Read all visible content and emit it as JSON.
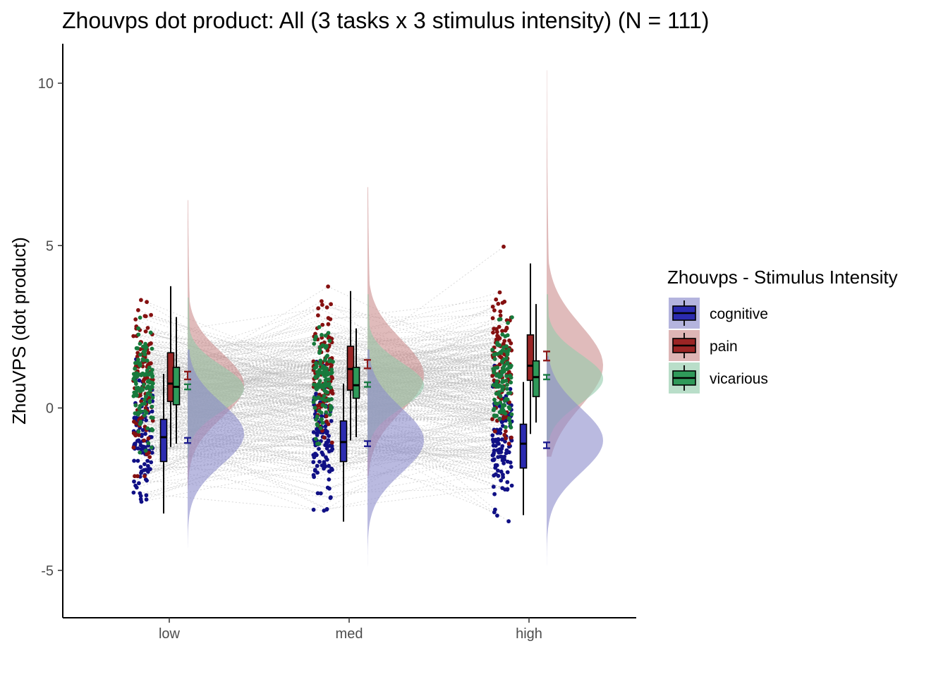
{
  "chart_data": {
    "type": "raincloud",
    "title": "Zhouvps dot product: All (3 tasks x 3 stimulus intensity) (N = 111)",
    "xlabel": "",
    "ylabel": "ZhouVPS  (dot product)",
    "ylim": [
      -6.3,
      11.2
    ],
    "yticks": [
      {
        "value": -5,
        "label": "-5"
      },
      {
        "value": 0,
        "label": "0"
      },
      {
        "value": 5,
        "label": "5"
      },
      {
        "value": 10,
        "label": "10"
      }
    ],
    "categories": [
      "low",
      "med",
      "high"
    ],
    "grid": false,
    "legend": {
      "title": "Zhouvps - Stimulus Intensity",
      "position": "right"
    },
    "series": [
      {
        "name": "cognitive",
        "color": "#1f1f8f",
        "fill": "#2b2bb0",
        "density_fill": "#8c8ccc",
        "point_color": "#101085",
        "stats": [
          {
            "category": "low",
            "q1": -1.65,
            "median": -0.9,
            "q3": -0.35,
            "whisker_low": -3.25,
            "whisker_high": 1.05,
            "mean": -1.0,
            "se": 0.08,
            "density_mean": -0.8,
            "density_sd": 0.95,
            "density_range": [
              -4.3,
              1.8
            ]
          },
          {
            "category": "med",
            "q1": -1.65,
            "median": -1.05,
            "q3": -0.4,
            "whisker_low": -3.5,
            "whisker_high": 0.75,
            "mean": -1.1,
            "se": 0.08,
            "density_mean": -1.0,
            "density_sd": 1.0,
            "density_range": [
              -4.9,
              1.8
            ]
          },
          {
            "category": "high",
            "q1": -1.85,
            "median": -1.1,
            "q3": -0.5,
            "whisker_low": -3.3,
            "whisker_high": 0.8,
            "mean": -1.15,
            "se": 0.09,
            "density_mean": -1.0,
            "density_sd": 1.0,
            "density_range": [
              -5.6,
              1.6
            ]
          }
        ]
      },
      {
        "name": "pain",
        "color": "#8b1a1a",
        "fill": "#9b2525",
        "density_fill": "#cc8e8e",
        "point_color": "#851010",
        "stats": [
          {
            "category": "low",
            "q1": 0.2,
            "median": 0.75,
            "q3": 1.7,
            "whisker_low": -1.2,
            "whisker_high": 3.75,
            "mean": 1.0,
            "se": 0.12,
            "density_mean": 0.7,
            "density_sd": 1.0,
            "density_range": [
              -2.5,
              6.4
            ]
          },
          {
            "category": "med",
            "q1": 0.55,
            "median": 1.2,
            "q3": 1.9,
            "whisker_low": -1.0,
            "whisker_high": 3.6,
            "mean": 1.35,
            "se": 0.13,
            "density_mean": 1.0,
            "density_sd": 1.1,
            "density_range": [
              -2.1,
              6.8
            ]
          },
          {
            "category": "high",
            "q1": 0.85,
            "median": 1.3,
            "q3": 2.25,
            "whisker_low": -0.8,
            "whisker_high": 4.45,
            "mean": 1.6,
            "se": 0.14,
            "density_mean": 1.3,
            "density_sd": 1.25,
            "density_range": [
              -1.5,
              10.4
            ]
          }
        ]
      },
      {
        "name": "vicarious",
        "color": "#1b7a45",
        "fill": "#2f9a5a",
        "density_fill": "#94ccac",
        "point_color": "#177a3c",
        "stats": [
          {
            "category": "low",
            "q1": 0.1,
            "median": 0.65,
            "q3": 1.25,
            "whisker_low": -1.1,
            "whisker_high": 2.8,
            "mean": 0.65,
            "se": 0.08,
            "density_mean": 0.6,
            "density_sd": 0.7,
            "density_range": [
              -1.8,
              3.4
            ]
          },
          {
            "category": "med",
            "q1": 0.3,
            "median": 0.7,
            "q3": 1.25,
            "whisker_low": -0.9,
            "whisker_high": 2.45,
            "mean": 0.72,
            "se": 0.07,
            "density_mean": 0.7,
            "density_sd": 0.7,
            "density_range": [
              -1.5,
              3.5
            ]
          },
          {
            "category": "high",
            "q1": 0.35,
            "median": 0.95,
            "q3": 1.45,
            "whisker_low": -0.45,
            "whisker_high": 3.2,
            "mean": 0.95,
            "se": 0.07,
            "density_mean": 0.9,
            "density_sd": 0.75,
            "density_range": [
              -1.0,
              3.5
            ]
          }
        ]
      }
    ]
  }
}
